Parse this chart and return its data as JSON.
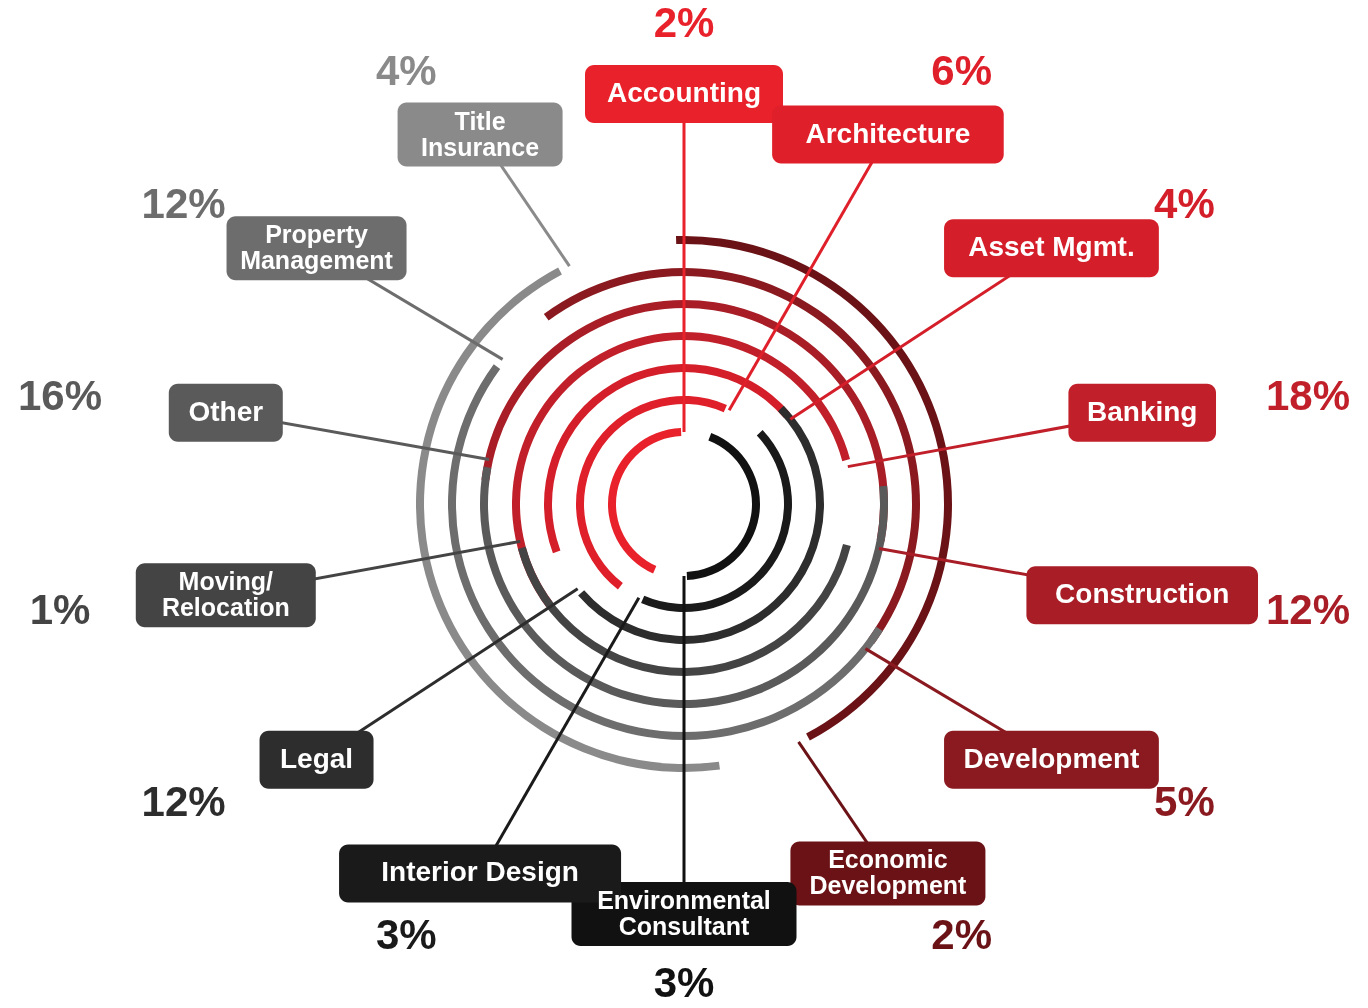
{
  "chart_data": {
    "type": "other",
    "categories": [
      "Accounting",
      "Architecture",
      "Asset Mgmt.",
      "Banking",
      "Construction",
      "Development",
      "Economic\nDevelopment",
      "Environmental\nConsultant",
      "Interior Design",
      "Legal",
      "Moving/\nRelocation",
      "Other",
      "Property\nManagement",
      "Title\nInsurance"
    ],
    "values": [
      2,
      6,
      4,
      18,
      12,
      5,
      2,
      3,
      3,
      12,
      1,
      16,
      12,
      4
    ],
    "value_labels": [
      "2%",
      "6%",
      "4%",
      "18%",
      "12%",
      "5%",
      "2%",
      "3%",
      "3%",
      "12%",
      "1%",
      "16%",
      "12%",
      "4%"
    ],
    "colors": [
      "#e8212b",
      "#df1f2a",
      "#d41f2a",
      "#c1202a",
      "#a81d26",
      "#8a1a1f",
      "#6b1216",
      "#111111",
      "#1a1a1a",
      "#2d2d2d",
      "#444444",
      "#5a5a5a",
      "#6d6d6d",
      "#8a8a8a"
    ]
  }
}
